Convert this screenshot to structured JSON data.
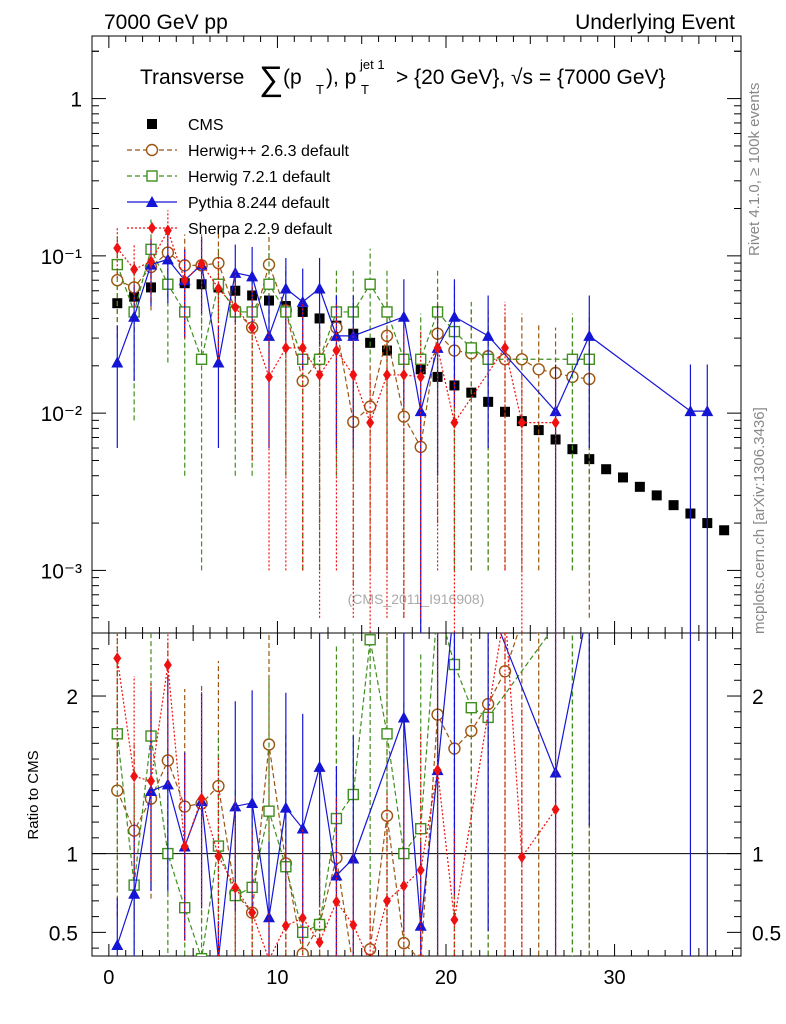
{
  "header": {
    "left": "7000 GeV pp",
    "right": "Underlying Event"
  },
  "side_labels": {
    "rivet": "Rivet 4.1.0, ≥ 100k events",
    "url": "mcplots.cern.ch [arXiv:1306.3436]"
  },
  "watermark": "(CMS_2011_I916908)",
  "chart_data": {
    "type": "line",
    "title": "Transverse ∑(pT), pT jet 1 > {20 GeV}, √s = {7000 GeV}",
    "title_parts": {
      "prefix": "Transverse",
      "sum": "∑",
      "p1": "(p",
      "t1": "T",
      "p2": "), p",
      "t2": "T",
      "jet": "jet 1",
      "rest": " > {20 GeV}, √s = {7000 GeV}"
    },
    "x": [
      0.5,
      1.5,
      2.5,
      3.5,
      4.5,
      5.5,
      6.5,
      7.5,
      8.5,
      9.5,
      10.5,
      11.5,
      12.5,
      13.5,
      14.5,
      15.5,
      16.5,
      17.5,
      18.5,
      19.5,
      20.5,
      21.5,
      22.5,
      23.5,
      24.5,
      25.5,
      26.5,
      27.5,
      28.5,
      29.5,
      30.5,
      31.5,
      32.5,
      33.5,
      34.5,
      35.5,
      36.5
    ],
    "xlim": [
      -1,
      37.5
    ],
    "x_ticks": [
      0,
      10,
      20,
      30
    ],
    "main_ylim": [
      0.0004,
      2.5
    ],
    "main_y_ticks": [
      {
        "v": 1,
        "label": "1"
      },
      {
        "v": 0.1,
        "label": "10⁻¹"
      },
      {
        "v": 0.01,
        "label": "10⁻²"
      },
      {
        "v": 0.001,
        "label": "10⁻³"
      }
    ],
    "ratio_ylim": [
      0.35,
      2.4
    ],
    "ratio_y_ticks": [
      {
        "v": 0.5,
        "label": "0.5"
      },
      {
        "v": 1,
        "label": "1"
      },
      {
        "v": 2,
        "label": "2"
      }
    ],
    "ratio_ylabel": "Ratio to CMS",
    "series": [
      {
        "name": "CMS",
        "color": "#000000",
        "marker": "square-filled",
        "line": "none",
        "values": [
          0.05,
          0.055,
          0.063,
          0.066,
          0.067,
          0.066,
          0.063,
          0.06,
          0.056,
          0.052,
          0.048,
          0.044,
          0.04,
          0.036,
          0.032,
          0.028,
          0.025,
          0.022,
          0.019,
          0.017,
          0.015,
          0.0135,
          0.0118,
          0.0102,
          0.0089,
          0.0078,
          0.0068,
          0.0059,
          0.0051,
          0.0044,
          0.0039,
          0.0034,
          0.003,
          0.0026,
          0.0023,
          0.002,
          0.0018
        ]
      },
      {
        "name": "Herwig++ 2.6.3 default",
        "color": "#9b5510",
        "marker": "circle-open",
        "line": "dashed",
        "values": [
          0.07,
          0.063,
          0.085,
          0.105,
          0.087,
          0.087,
          0.09,
          0.045,
          0.035,
          0.088,
          0.045,
          0.016,
          0.022,
          0.035,
          0.0088,
          0.011,
          0.031,
          0.0095,
          0.0061,
          0.032,
          0.025,
          0.024,
          0.023,
          0.022,
          0.022,
          0.019,
          0.018,
          0.017,
          0.0165,
          null,
          null,
          null,
          null,
          null,
          null,
          null,
          null
        ],
        "err": [
          0.04,
          0.03,
          0.04,
          0.05,
          0.05,
          0.05,
          0.05,
          0.035,
          0.03,
          0.05,
          0.04,
          0.015,
          0.02,
          0.03,
          0.008,
          0.01,
          0.03,
          0.009,
          0.006,
          0.03,
          0.024,
          0.023,
          0.022,
          0.021,
          0.021,
          0.018,
          0.017,
          0.016,
          0.016,
          null,
          null,
          null,
          null,
          null,
          null,
          null,
          null
        ]
      },
      {
        "name": "Herwig 7.2.1 default",
        "color": "#3f8f1f",
        "marker": "square-open",
        "line": "dashed",
        "values": [
          0.088,
          0.044,
          0.11,
          0.066,
          0.044,
          0.022,
          0.066,
          0.044,
          0.044,
          0.066,
          0.044,
          0.022,
          0.022,
          0.044,
          0.044,
          0.066,
          0.044,
          0.022,
          0.022,
          0.044,
          0.033,
          0.026,
          0.022,
          null,
          null,
          null,
          null,
          0.022,
          0.022,
          null,
          null,
          null,
          null,
          null,
          null,
          null,
          null
        ],
        "err": [
          0.05,
          0.035,
          0.06,
          0.045,
          0.04,
          0.021,
          0.045,
          0.04,
          0.04,
          0.045,
          0.04,
          0.021,
          0.021,
          0.04,
          0.04,
          0.045,
          0.04,
          0.021,
          0.021,
          0.04,
          0.032,
          0.025,
          0.021,
          null,
          null,
          null,
          null,
          0.021,
          0.021,
          null,
          null,
          null,
          null,
          null,
          null,
          null,
          null
        ]
      },
      {
        "name": "Pythia 8.244 default",
        "color": "#1515d6",
        "marker": "triangle-filled",
        "line": "solid",
        "values": [
          0.021,
          0.041,
          0.088,
          0.095,
          0.07,
          0.088,
          0.021,
          0.078,
          0.074,
          0.031,
          0.062,
          0.051,
          0.062,
          0.031,
          0.031,
          null,
          null,
          0.041,
          0.0103,
          0.026,
          0.041,
          null,
          0.031,
          null,
          null,
          null,
          0.0103,
          null,
          0.031,
          null,
          null,
          null,
          null,
          null,
          0.0103,
          0.0103,
          null
        ],
        "err": [
          0.015,
          0.025,
          0.04,
          0.045,
          0.04,
          0.045,
          0.015,
          0.04,
          0.04,
          0.025,
          0.035,
          0.032,
          0.035,
          0.025,
          0.025,
          null,
          null,
          0.03,
          0.01,
          0.022,
          0.03,
          null,
          0.025,
          null,
          null,
          null,
          0.0101,
          null,
          0.025,
          null,
          null,
          null,
          null,
          null,
          0.0101,
          0.0101,
          null
        ]
      },
      {
        "name": "Sherpa 2.2.9 default",
        "color": "#ee1111",
        "marker": "diamond-filled",
        "line": "dotted",
        "values": [
          0.112,
          0.082,
          0.092,
          0.145,
          0.07,
          0.089,
          0.062,
          0.047,
          0.035,
          0.017,
          0.026,
          0.026,
          0.0175,
          0.025,
          0.0175,
          0.0087,
          0.0175,
          0.0175,
          0.017,
          0.026,
          0.0087,
          null,
          null,
          0.026,
          0.0087,
          null,
          0.0087,
          null,
          null,
          null,
          null,
          null,
          null,
          null,
          null,
          null,
          null
        ],
        "err": [
          0.04,
          0.035,
          0.04,
          0.05,
          0.04,
          0.045,
          0.04,
          0.035,
          0.03,
          0.016,
          0.025,
          0.025,
          0.017,
          0.024,
          0.017,
          0.0085,
          0.017,
          0.017,
          0.0165,
          0.025,
          0.0085,
          null,
          null,
          0.025,
          0.0085,
          null,
          0.0085,
          null,
          null,
          null,
          null,
          null,
          null,
          null,
          null,
          null,
          null
        ]
      }
    ]
  }
}
